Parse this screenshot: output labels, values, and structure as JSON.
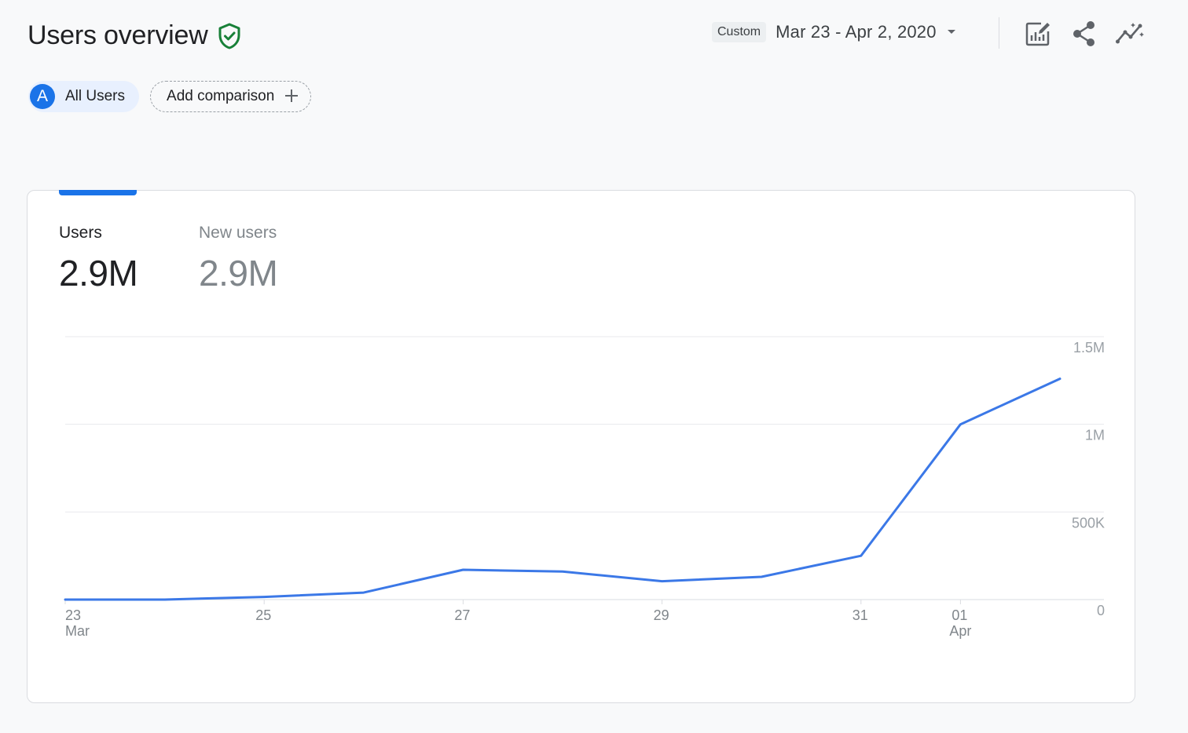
{
  "header": {
    "title": "Users overview",
    "comparison": {
      "avatar_letter": "A",
      "segment_label": "All Users",
      "add_label": "Add comparison"
    },
    "date_range": {
      "badge": "Custom",
      "text": "Mar 23 - Apr 2, 2020"
    }
  },
  "toolbar": {
    "icons": [
      "customize-report-icon",
      "share-icon",
      "insights-icon"
    ]
  },
  "metrics": [
    {
      "label": "Users",
      "value": "2.9M",
      "active": true
    },
    {
      "label": "New users",
      "value": "2.9M",
      "active": false
    }
  ],
  "colors": {
    "accent": "#1a73e8",
    "shield": "#188038",
    "line": "#3b78e7"
  },
  "chart_data": {
    "type": "line",
    "title": "Users",
    "xlabel": "",
    "ylabel": "",
    "x": [
      "Mar 23",
      "Mar 24",
      "Mar 25",
      "Mar 26",
      "Mar 27",
      "Mar 28",
      "Mar 29",
      "Mar 30",
      "Mar 31",
      "Apr 01",
      "Apr 02"
    ],
    "series": [
      {
        "name": "Users",
        "values": [
          0,
          0,
          15000,
          40000,
          170000,
          160000,
          105000,
          130000,
          250000,
          1000000,
          1260000
        ]
      }
    ],
    "ylim": [
      0,
      1500000
    ],
    "yticks": [
      {
        "value": 0,
        "label": "0"
      },
      {
        "value": 500000,
        "label": "500K"
      },
      {
        "value": 1000000,
        "label": "1M"
      },
      {
        "value": 1500000,
        "label": "1.5M"
      }
    ],
    "xticks": [
      {
        "index": 0,
        "label": "23",
        "sub": "Mar"
      },
      {
        "index": 2,
        "label": "25",
        "sub": ""
      },
      {
        "index": 4,
        "label": "27",
        "sub": ""
      },
      {
        "index": 6,
        "label": "29",
        "sub": ""
      },
      {
        "index": 8,
        "label": "31",
        "sub": ""
      },
      {
        "index": 9,
        "label": "01",
        "sub": "Apr"
      }
    ],
    "grid": true
  }
}
